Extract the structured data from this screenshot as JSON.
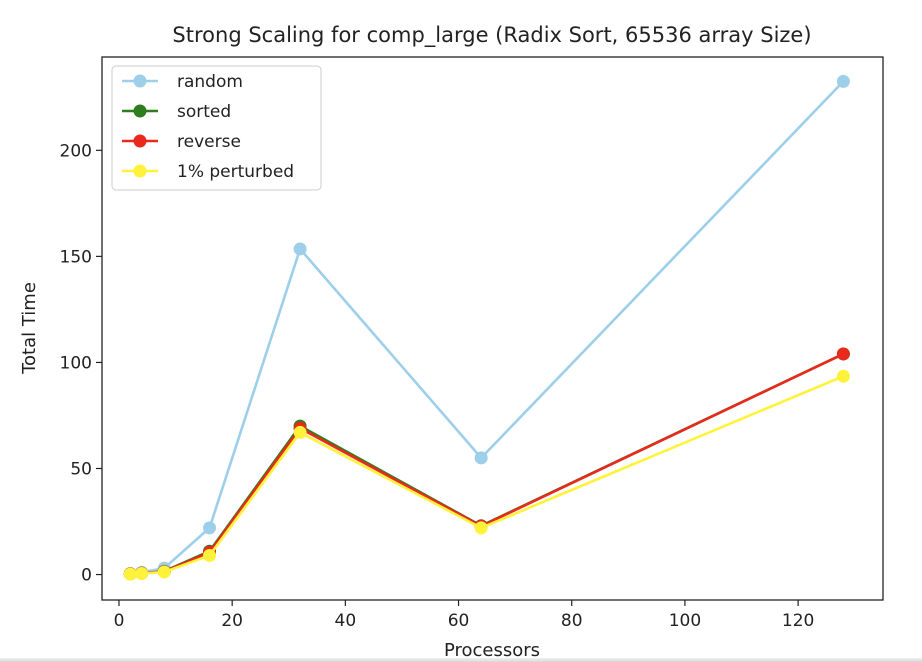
{
  "chart_data": {
    "type": "line",
    "title": "Strong Scaling for comp_large (Radix Sort, 65536 array Size)",
    "xlabel": "Processors",
    "ylabel": "Total Time",
    "x": [
      2,
      4,
      8,
      16,
      32,
      64,
      128
    ],
    "xlim": [
      -3,
      135
    ],
    "ylim": [
      -12,
      244
    ],
    "xticks": [
      0,
      20,
      40,
      60,
      80,
      100,
      120
    ],
    "yticks": [
      0,
      50,
      100,
      150,
      200
    ],
    "grid": false,
    "legend_position": "upper left",
    "series": [
      {
        "name": "random",
        "color": "#9dcfea",
        "values": [
          0.5,
          1.0,
          3.0,
          22.0,
          153.5,
          55.0,
          232.5
        ]
      },
      {
        "name": "sorted",
        "color": "#2e7d1e",
        "values": [
          0.3,
          0.6,
          1.5,
          11.0,
          70.0,
          23.0,
          104.0
        ]
      },
      {
        "name": "reverse",
        "color": "#e8291c",
        "values": [
          0.3,
          0.6,
          1.4,
          10.5,
          69.0,
          22.8,
          104.0
        ]
      },
      {
        "name": "1% perturbed",
        "color": "#fff23a",
        "values": [
          0.2,
          0.5,
          1.2,
          9.0,
          67.0,
          22.0,
          93.5
        ]
      }
    ]
  }
}
